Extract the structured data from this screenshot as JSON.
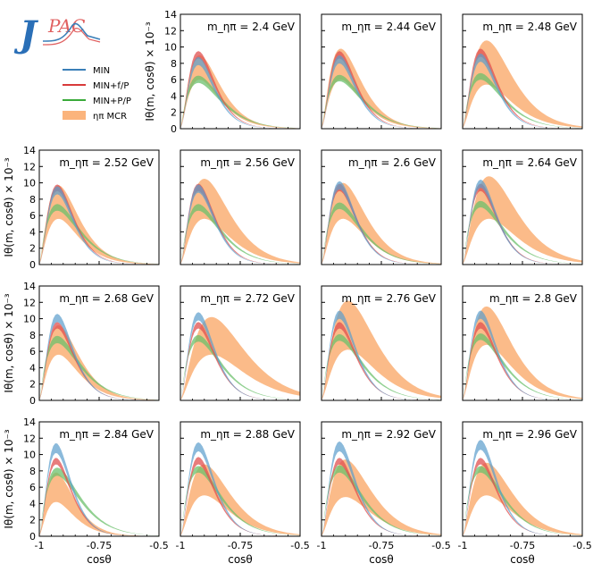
{
  "logo": {
    "text": "JPAC"
  },
  "legend": [
    {
      "name": "MIN",
      "color": "#3a7fb8",
      "kind": "line"
    },
    {
      "name": "MIN+f/P",
      "color": "#d83a3a",
      "kind": "line"
    },
    {
      "name": "MIN+P/P",
      "color": "#3aaa3a",
      "kind": "line"
    },
    {
      "name": "ηπ MCR",
      "color": "#fbb47c",
      "kind": "band"
    }
  ],
  "axes": {
    "xlabel": "cosθ",
    "ylabel": "Iθ(m, cosθ) × 10⁻³",
    "xticks": [
      -1,
      -0.75,
      -0.5
    ],
    "xtick_labels": [
      "-1",
      "-0.75",
      "-0.5"
    ],
    "yticks": [
      0,
      2,
      4,
      6,
      8,
      10,
      12,
      14
    ],
    "xlim": [
      -1,
      -0.5
    ],
    "ylim": [
      0,
      14
    ]
  },
  "chart_data": {
    "type": "line",
    "title": "",
    "xlabel": "cosθ",
    "ylabel": "Iθ(m, cosθ) × 10⁻³",
    "xlim": [
      -1,
      -0.5
    ],
    "ylim": [
      0,
      14
    ],
    "panels": [
      {
        "label": "m_ηπ = 2.4 GeV",
        "peak_x": -0.92,
        "bands": {
          "MCR": [
            6.0,
            9.0
          ],
          "MIN": [
            7.8,
            8.8
          ],
          "MIN+f/P": [
            8.6,
            9.5
          ],
          "MIN+P/P": [
            5.6,
            6.5
          ]
        }
      },
      {
        "label": "m_ηπ = 2.44 GeV",
        "peak_x": -0.92,
        "bands": {
          "MCR": [
            6.0,
            9.8
          ],
          "MIN": [
            8.0,
            9.0
          ],
          "MIN+f/P": [
            8.6,
            9.5
          ],
          "MIN+P/P": [
            5.8,
            6.6
          ]
        }
      },
      {
        "label": "m_ηπ = 2.48 GeV",
        "peak_x": -0.9,
        "bands": {
          "MCR": [
            5.4,
            10.8
          ],
          "MIN": [
            8.2,
            9.2
          ],
          "MIN+f/P": [
            8.8,
            9.8
          ],
          "MIN+P/P": [
            6.0,
            6.8
          ]
        }
      },
      {
        "label": "m_ηπ = 2.52 GeV",
        "peak_x": -0.92,
        "bands": {
          "MCR": [
            5.6,
            9.7
          ],
          "MIN": [
            8.6,
            9.6
          ],
          "MIN+f/P": [
            9.0,
            9.8
          ],
          "MIN+P/P": [
            6.6,
            7.4
          ]
        }
      },
      {
        "label": "m_ηπ = 2.56 GeV",
        "peak_x": -0.9,
        "bands": {
          "MCR": [
            5.6,
            10.5
          ],
          "MIN": [
            8.8,
            9.8
          ],
          "MIN+f/P": [
            9.0,
            9.9
          ],
          "MIN+P/P": [
            6.6,
            7.4
          ]
        }
      },
      {
        "label": "m_ηπ = 2.6 GeV",
        "peak_x": -0.91,
        "bands": {
          "MCR": [
            5.6,
            10.0
          ],
          "MIN": [
            9.2,
            10.2
          ],
          "MIN+f/P": [
            9.0,
            9.9
          ],
          "MIN+P/P": [
            6.8,
            7.6
          ]
        }
      },
      {
        "label": "m_ηπ = 2.64 GeV",
        "peak_x": -0.89,
        "bands": {
          "MCR": [
            5.6,
            10.8
          ],
          "MIN": [
            9.4,
            10.4
          ],
          "MIN+f/P": [
            9.0,
            9.9
          ],
          "MIN+P/P": [
            7.0,
            7.8
          ]
        }
      },
      {
        "label": "m_ηπ = 2.68 GeV",
        "peak_x": -0.92,
        "bands": {
          "MCR": [
            5.6,
            9.2
          ],
          "MIN": [
            9.6,
            10.6
          ],
          "MIN+f/P": [
            8.8,
            9.6
          ],
          "MIN+P/P": [
            7.0,
            7.9
          ]
        }
      },
      {
        "label": "m_ηπ = 2.72 GeV",
        "peak_x": -0.87,
        "bands": {
          "MCR": [
            5.6,
            10.2
          ],
          "MIN": [
            9.8,
            10.8
          ],
          "MIN+f/P": [
            8.8,
            9.6
          ],
          "MIN+P/P": [
            7.2,
            8.0
          ]
        }
      },
      {
        "label": "m_ηπ = 2.76 GeV",
        "peak_x": -0.89,
        "bands": {
          "MCR": [
            6.2,
            12.2
          ],
          "MIN": [
            10.0,
            11.0
          ],
          "MIN+f/P": [
            8.8,
            9.6
          ],
          "MIN+P/P": [
            7.3,
            8.1
          ]
        }
      },
      {
        "label": "m_ηπ = 2.8 GeV",
        "peak_x": -0.9,
        "bands": {
          "MCR": [
            6.8,
            11.5
          ],
          "MIN": [
            10.0,
            11.0
          ],
          "MIN+f/P": [
            8.8,
            9.6
          ],
          "MIN+P/P": [
            7.4,
            8.2
          ]
        }
      },
      {
        "label": "m_ηπ = 2.84 GeV",
        "peak_x": -0.93,
        "bands": {
          "MCR": [
            4.2,
            7.8
          ],
          "MIN": [
            10.2,
            11.4
          ],
          "MIN+f/P": [
            8.8,
            9.6
          ],
          "MIN+P/P": [
            7.4,
            8.4
          ]
        }
      },
      {
        "label": "m_ηπ = 2.88 GeV",
        "peak_x": -0.9,
        "bands": {
          "MCR": [
            5.0,
            8.8
          ],
          "MIN": [
            10.4,
            11.5
          ],
          "MIN+f/P": [
            8.8,
            9.7
          ],
          "MIN+P/P": [
            7.8,
            8.6
          ]
        }
      },
      {
        "label": "m_ηπ = 2.92 GeV",
        "peak_x": -0.9,
        "bands": {
          "MCR": [
            4.8,
            9.4
          ],
          "MIN": [
            10.4,
            11.6
          ],
          "MIN+f/P": [
            8.8,
            9.6
          ],
          "MIN+P/P": [
            7.8,
            8.7
          ]
        }
      },
      {
        "label": "m_ηπ = 2.96 GeV",
        "peak_x": -0.9,
        "bands": {
          "MCR": [
            5.0,
            9.0
          ],
          "MIN": [
            10.6,
            11.8
          ],
          "MIN+f/P": [
            8.8,
            9.6
          ],
          "MIN+P/P": [
            7.8,
            8.6
          ]
        }
      }
    ]
  }
}
